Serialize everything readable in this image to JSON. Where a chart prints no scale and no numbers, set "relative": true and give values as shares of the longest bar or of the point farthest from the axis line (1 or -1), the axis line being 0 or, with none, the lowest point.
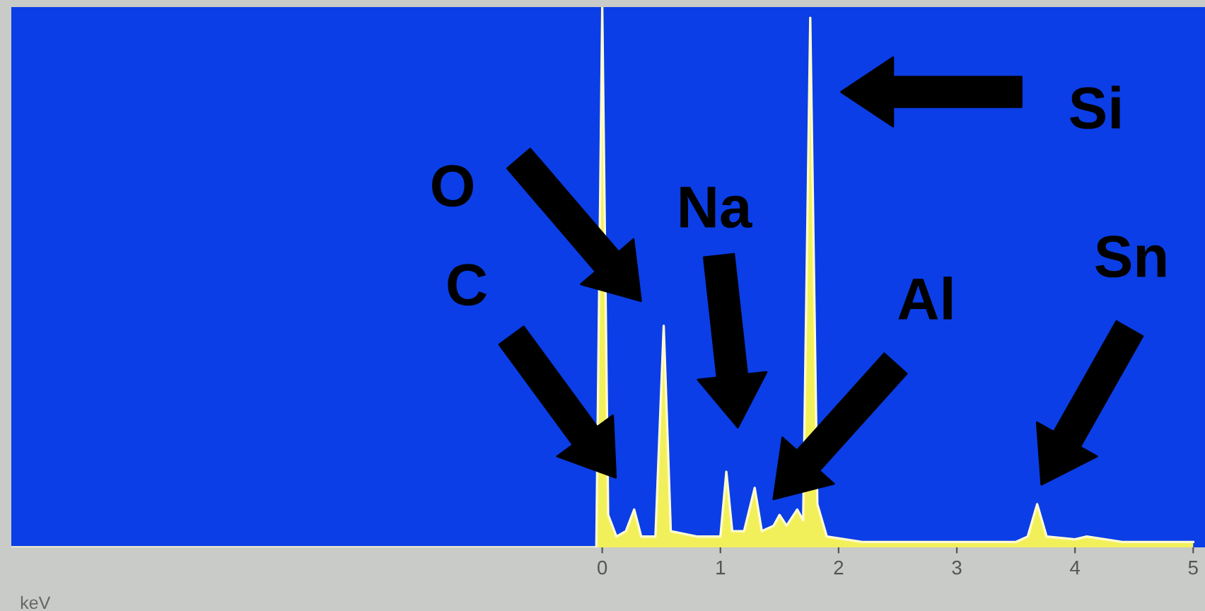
{
  "chart_data": {
    "type": "area",
    "relative": true,
    "xlabel": "keV",
    "xlim": [
      -5,
      5.1
    ],
    "xticks": [
      0,
      1,
      2,
      3,
      4,
      5
    ],
    "tick_labels": "x",
    "grid": false,
    "series": [
      {
        "color": "#f2f05a",
        "x": [
          -5,
          -0.05,
          0.0,
          0.05,
          0.12,
          0.2,
          0.27,
          0.33,
          0.45,
          0.52,
          0.58,
          0.8,
          1.0,
          1.05,
          1.1,
          1.2,
          1.29,
          1.35,
          1.45,
          1.5,
          1.56,
          1.65,
          1.7,
          1.76,
          1.82,
          1.9,
          2.2,
          3.0,
          3.5,
          3.6,
          3.68,
          3.76,
          4.0,
          4.1,
          4.4,
          5.0
        ],
        "values": [
          0,
          0,
          1.0,
          0.06,
          0.02,
          0.03,
          0.07,
          0.02,
          0.02,
          0.41,
          0.03,
          0.02,
          0.02,
          0.14,
          0.03,
          0.03,
          0.11,
          0.03,
          0.04,
          0.06,
          0.04,
          0.07,
          0.05,
          0.98,
          0.08,
          0.02,
          0.01,
          0.01,
          0.01,
          0.02,
          0.08,
          0.02,
          0.015,
          0.02,
          0.01,
          0.01
        ]
      }
    ],
    "annotations": [
      "C",
      "O",
      "Na",
      "Al",
      "Si",
      "Sn"
    ]
  }
}
